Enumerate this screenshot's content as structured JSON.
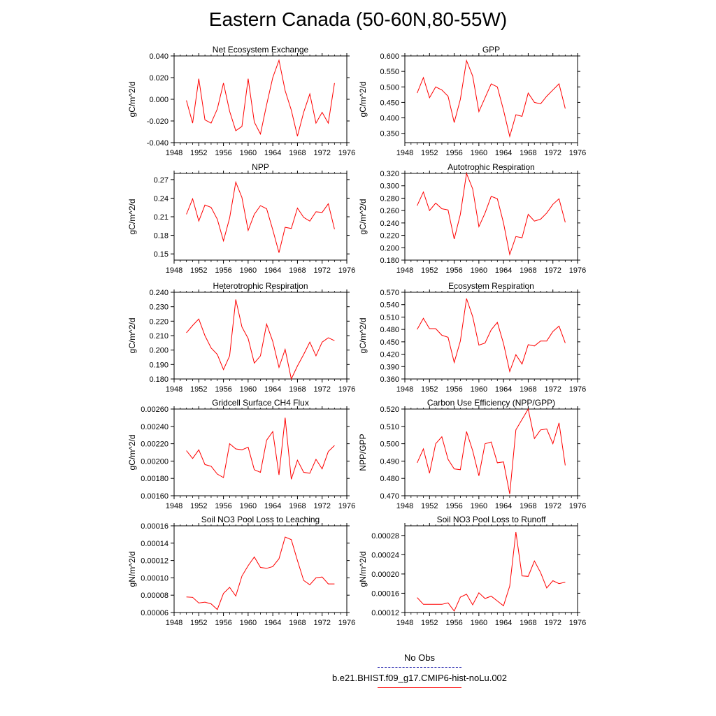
{
  "title": "Eastern Canada (50-60N,80-55W)",
  "colors": {
    "series": "#ff0000",
    "obs": "#3a3ab5",
    "axis": "#000000"
  },
  "legend": [
    {
      "label": "No Obs",
      "style": "dashed",
      "color": "#3a3ab5"
    },
    {
      "label": "b.e21.BHIST.f09_g17.CMIP6-hist-noLu.002",
      "style": "solid",
      "color": "#ff0000"
    }
  ],
  "chart_data": [
    {
      "type": "line",
      "title": "Net Ecosystem Exchange",
      "ylabel": "gC/m^2/d",
      "xlim": [
        1948,
        1976
      ],
      "xticks": [
        "1948",
        "1952",
        "1956",
        "1960",
        "1964",
        "1968",
        "1972",
        "1976"
      ],
      "ylim": [
        -0.04,
        0.04
      ],
      "yticks": [
        "-0.040",
        "-0.020",
        "0.000",
        "0.020",
        "0.040"
      ],
      "x": [
        1950,
        1951,
        1952,
        1953,
        1954,
        1955,
        1956,
        1957,
        1958,
        1959,
        1960,
        1961,
        1962,
        1963,
        1964,
        1965,
        1966,
        1967,
        1968,
        1969,
        1970,
        1971,
        1972,
        1973,
        1974
      ],
      "series": [
        {
          "values": [
            -0.001,
            -0.022,
            0.019,
            -0.019,
            -0.022,
            -0.009,
            0.015,
            -0.011,
            -0.029,
            -0.025,
            0.019,
            -0.021,
            -0.032,
            -0.005,
            0.02,
            0.036,
            0.008,
            -0.01,
            -0.034,
            -0.012,
            0.005,
            -0.022,
            -0.012,
            -0.022,
            0.015
          ]
        }
      ]
    },
    {
      "type": "line",
      "title": "GPP",
      "ylabel": "gC/m^2/d",
      "xlim": [
        1948,
        1976
      ],
      "xticks": [
        "1948",
        "1952",
        "1956",
        "1960",
        "1964",
        "1968",
        "1972",
        "1976"
      ],
      "ylim": [
        0.32,
        0.6
      ],
      "yticks": [
        "0.350",
        "0.400",
        "0.450",
        "0.500",
        "0.550",
        "0.600"
      ],
      "x": [
        1950,
        1951,
        1952,
        1953,
        1954,
        1955,
        1956,
        1957,
        1958,
        1959,
        1960,
        1961,
        1962,
        1963,
        1964,
        1965,
        1966,
        1967,
        1968,
        1969,
        1970,
        1971,
        1972,
        1973,
        1974
      ],
      "series": [
        {
          "values": [
            0.48,
            0.53,
            0.465,
            0.5,
            0.49,
            0.47,
            0.385,
            0.46,
            0.585,
            0.535,
            0.42,
            0.465,
            0.51,
            0.5,
            0.425,
            0.34,
            0.41,
            0.405,
            0.48,
            0.45,
            0.445,
            0.47,
            0.49,
            0.51,
            0.43
          ]
        }
      ]
    },
    {
      "type": "line",
      "title": "NPP",
      "ylabel": "gC/m^2/d",
      "xlim": [
        1948,
        1976
      ],
      "xticks": [
        "1948",
        "1952",
        "1956",
        "1960",
        "1964",
        "1968",
        "1972",
        "1976"
      ],
      "ylim": [
        0.14,
        0.28
      ],
      "yticks": [
        "0.15",
        "0.18",
        "0.21",
        "0.24",
        "0.27"
      ],
      "x": [
        1950,
        1951,
        1952,
        1953,
        1954,
        1955,
        1956,
        1957,
        1958,
        1959,
        1960,
        1961,
        1962,
        1963,
        1964,
        1965,
        1966,
        1967,
        1968,
        1969,
        1970,
        1971,
        1972,
        1973,
        1974
      ],
      "series": [
        {
          "values": [
            0.214,
            0.239,
            0.203,
            0.229,
            0.225,
            0.206,
            0.171,
            0.208,
            0.266,
            0.241,
            0.188,
            0.214,
            0.228,
            0.223,
            0.189,
            0.152,
            0.193,
            0.191,
            0.224,
            0.209,
            0.203,
            0.218,
            0.217,
            0.231,
            0.19
          ]
        }
      ]
    },
    {
      "type": "line",
      "title": "Autotrophic Respiration",
      "ylabel": "gC/m^2/d",
      "xlim": [
        1948,
        1976
      ],
      "xticks": [
        "1948",
        "1952",
        "1956",
        "1960",
        "1964",
        "1968",
        "1972",
        "1976"
      ],
      "ylim": [
        0.18,
        0.32
      ],
      "yticks": [
        "0.180",
        "0.200",
        "0.220",
        "0.240",
        "0.260",
        "0.280",
        "0.300",
        "0.320"
      ],
      "x": [
        1950,
        1951,
        1952,
        1953,
        1954,
        1955,
        1956,
        1957,
        1958,
        1959,
        1960,
        1961,
        1962,
        1963,
        1964,
        1965,
        1966,
        1967,
        1968,
        1969,
        1970,
        1971,
        1972,
        1973,
        1974
      ],
      "series": [
        {
          "values": [
            0.268,
            0.29,
            0.26,
            0.272,
            0.263,
            0.261,
            0.214,
            0.254,
            0.32,
            0.295,
            0.234,
            0.256,
            0.283,
            0.279,
            0.24,
            0.189,
            0.218,
            0.216,
            0.254,
            0.243,
            0.246,
            0.256,
            0.27,
            0.279,
            0.241
          ]
        }
      ]
    },
    {
      "type": "line",
      "title": "Heterotrophic Respiration",
      "ylabel": "gC/m^2/d",
      "xlim": [
        1948,
        1976
      ],
      "xticks": [
        "1948",
        "1952",
        "1956",
        "1960",
        "1964",
        "1968",
        "1972",
        "1976"
      ],
      "ylim": [
        0.18,
        0.24
      ],
      "yticks": [
        "0.180",
        "0.190",
        "0.200",
        "0.210",
        "0.220",
        "0.230",
        "0.240"
      ],
      "x": [
        1950,
        1951,
        1952,
        1953,
        1954,
        1955,
        1956,
        1957,
        1958,
        1959,
        1960,
        1961,
        1962,
        1963,
        1964,
        1965,
        1966,
        1967,
        1968,
        1969,
        1970,
        1971,
        1972,
        1973,
        1974
      ],
      "series": [
        {
          "values": [
            0.212,
            0.217,
            0.2215,
            0.21,
            0.2015,
            0.197,
            0.1865,
            0.196,
            0.235,
            0.216,
            0.208,
            0.191,
            0.196,
            0.218,
            0.206,
            0.188,
            0.2005,
            0.18,
            0.189,
            0.197,
            0.2055,
            0.196,
            0.2055,
            0.2085,
            0.2065
          ]
        }
      ]
    },
    {
      "type": "line",
      "title": "Ecosystem Respiration",
      "ylabel": "gC/m^2/d",
      "xlim": [
        1948,
        1976
      ],
      "xticks": [
        "1948",
        "1952",
        "1956",
        "1960",
        "1964",
        "1968",
        "1972",
        "1976"
      ],
      "ylim": [
        0.36,
        0.57
      ],
      "yticks": [
        "0.360",
        "0.390",
        "0.420",
        "0.450",
        "0.480",
        "0.510",
        "0.540",
        "0.570"
      ],
      "x": [
        1950,
        1951,
        1952,
        1953,
        1954,
        1955,
        1956,
        1957,
        1958,
        1959,
        1960,
        1961,
        1962,
        1963,
        1964,
        1965,
        1966,
        1967,
        1968,
        1969,
        1970,
        1971,
        1972,
        1973,
        1974
      ],
      "series": [
        {
          "values": [
            0.48,
            0.507,
            0.482,
            0.482,
            0.466,
            0.461,
            0.4,
            0.452,
            0.555,
            0.511,
            0.442,
            0.447,
            0.479,
            0.497,
            0.446,
            0.378,
            0.419,
            0.396,
            0.443,
            0.44,
            0.452,
            0.452,
            0.475,
            0.488,
            0.447
          ]
        }
      ]
    },
    {
      "type": "line",
      "title": "Gridcell Surface CH4 Flux",
      "ylabel": "gC/m^2/d",
      "xlim": [
        1948,
        1976
      ],
      "xticks": [
        "1948",
        "1952",
        "1956",
        "1960",
        "1964",
        "1968",
        "1972",
        "1976"
      ],
      "ylim": [
        0.0016,
        0.0026
      ],
      "yticks": [
        "0.00160",
        "0.00180",
        "0.00200",
        "0.00220",
        "0.00240",
        "0.00260"
      ],
      "x": [
        1950,
        1951,
        1952,
        1953,
        1954,
        1955,
        1956,
        1957,
        1958,
        1959,
        1960,
        1961,
        1962,
        1963,
        1964,
        1965,
        1966,
        1967,
        1968,
        1969,
        1970,
        1971,
        1972,
        1973,
        1974
      ],
      "series": [
        {
          "values": [
            0.00212,
            0.00203,
            0.00213,
            0.00196,
            0.00194,
            0.00185,
            0.00181,
            0.0022,
            0.00214,
            0.00213,
            0.00216,
            0.0019,
            0.00187,
            0.00224,
            0.00234,
            0.00184,
            0.0025,
            0.00179,
            0.00201,
            0.00187,
            0.00186,
            0.00202,
            0.00191,
            0.00211,
            0.00218
          ]
        }
      ]
    },
    {
      "type": "line",
      "title": "Carbon Use Efficiency (NPP/GPP)",
      "ylabel": "NPP/GPP",
      "xlim": [
        1948,
        1976
      ],
      "xticks": [
        "1948",
        "1952",
        "1956",
        "1960",
        "1964",
        "1968",
        "1972",
        "1976"
      ],
      "ylim": [
        0.47,
        0.52
      ],
      "yticks": [
        "0.470",
        "0.480",
        "0.490",
        "0.500",
        "0.510",
        "0.520"
      ],
      "x": [
        1950,
        1951,
        1952,
        1953,
        1954,
        1955,
        1956,
        1957,
        1958,
        1959,
        1960,
        1961,
        1962,
        1963,
        1964,
        1965,
        1966,
        1967,
        1968,
        1969,
        1970,
        1971,
        1972,
        1973,
        1974
      ],
      "series": [
        {
          "values": [
            0.489,
            0.497,
            0.483,
            0.5,
            0.504,
            0.491,
            0.4855,
            0.485,
            0.507,
            0.496,
            0.4815,
            0.5,
            0.501,
            0.489,
            0.4895,
            0.471,
            0.508,
            0.514,
            0.52,
            0.503,
            0.508,
            0.5085,
            0.5,
            0.512,
            0.4875
          ]
        }
      ]
    },
    {
      "type": "line",
      "title": "Soil NO3 Pool Loss to Leaching",
      "ylabel": "gN/m^2/d",
      "xlim": [
        1948,
        1976
      ],
      "xticks": [
        "1948",
        "1952",
        "1956",
        "1960",
        "1964",
        "1968",
        "1972",
        "1976"
      ],
      "ylim": [
        6e-05,
        0.00016
      ],
      "yticks": [
        "0.00006",
        "0.00008",
        "0.00010",
        "0.00012",
        "0.00014",
        "0.00016"
      ],
      "x": [
        1950,
        1951,
        1952,
        1953,
        1954,
        1955,
        1956,
        1957,
        1958,
        1959,
        1960,
        1961,
        1962,
        1963,
        1964,
        1965,
        1966,
        1967,
        1968,
        1969,
        1970,
        1971,
        1972,
        1973,
        1974
      ],
      "series": [
        {
          "values": [
            7.8e-05,
            7.75e-05,
            7.1e-05,
            7.2e-05,
            7e-05,
            6.35e-05,
            8.2e-05,
            8.9e-05,
            7.9e-05,
            0.000102,
            0.000114,
            0.000124,
            0.000112,
            0.000111,
            0.000113,
            0.000122,
            0.000147,
            0.000144,
            0.00012,
            9.7e-05,
            9.2e-05,
            0.0001,
            0.000101,
            9.3e-05,
            9.3e-05
          ]
        }
      ]
    },
    {
      "type": "line",
      "title": "Soil NO3 Pool Loss to Runoff",
      "ylabel": "gN/m^2/d",
      "xlim": [
        1948,
        1976
      ],
      "xticks": [
        "1948",
        "1952",
        "1956",
        "1960",
        "1964",
        "1968",
        "1972",
        "1976"
      ],
      "ylim": [
        0.00012,
        0.0003
      ],
      "yticks": [
        "0.00012",
        "0.00016",
        "0.00020",
        "0.00024",
        "0.00028"
      ],
      "x": [
        1950,
        1951,
        1952,
        1953,
        1954,
        1955,
        1956,
        1957,
        1958,
        1959,
        1960,
        1961,
        1962,
        1963,
        1964,
        1965,
        1966,
        1967,
        1968,
        1969,
        1970,
        1971,
        1972,
        1973,
        1974
      ],
      "series": [
        {
          "values": [
            0.000151,
            0.000137,
            0.000137,
            0.000137,
            0.000137,
            0.00014,
            0.000123,
            0.000152,
            0.000158,
            0.000136,
            0.000161,
            0.000149,
            0.000154,
            0.000144,
            0.000134,
            0.000175,
            0.000287,
            0.000196,
            0.000195,
            0.000227,
            0.000203,
            0.000171,
            0.000186,
            0.00018,
            0.000183
          ]
        }
      ]
    }
  ]
}
